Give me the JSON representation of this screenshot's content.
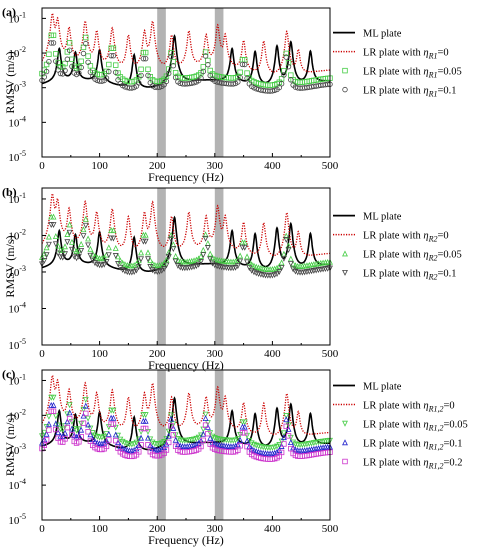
{
  "chart_data": [
    {
      "panel_label": "(a)",
      "type": "line",
      "xlabel": "Frequency (Hz)",
      "ylabel": "RMSV (m/s)",
      "xlim": [
        0,
        500
      ],
      "ylim_log10": [
        -5,
        -0.7
      ],
      "y_scale": "log",
      "x_ticks": [
        "0",
        "100",
        "200",
        "300",
        "400",
        "500"
      ],
      "y_ticks": [
        {
          "base": "10",
          "exp": "-1"
        },
        {
          "base": "10",
          "exp": "-2"
        },
        {
          "base": "10",
          "exp": "-3"
        },
        {
          "base": "10",
          "exp": "-4"
        },
        {
          "base": "10",
          "exp": "-5"
        }
      ],
      "shaded_bands": [
        [
          200,
          215
        ],
        [
          300,
          315
        ]
      ],
      "legend_position": "right",
      "series": [
        {
          "legend": "ML plate",
          "eta_symbol": "",
          "eta_sub": "",
          "eta_value": "",
          "color": "#000000",
          "style": "solid",
          "marker": "none",
          "peaks": [
            30,
            58,
            100,
            160,
            230,
            330,
            370,
            408,
            432,
            466
          ],
          "amps": [
            0.012,
            0.009,
            0.011,
            0.008,
            0.03,
            0.012,
            0.01,
            0.015,
            0.02,
            0.01
          ],
          "base": 0.0012
        },
        {
          "legend": "LR plate with ",
          "eta_symbol": "η",
          "eta_sub": "R1",
          "eta_value": "=0",
          "color": "#cc0000",
          "style": "dotted",
          "marker": "none",
          "peaks": [
            18,
            27,
            47,
            75,
            95,
            122,
            150,
            178,
            192,
            225,
            255,
            285,
            305,
            318,
            350,
            385,
            425,
            445
          ],
          "amps": [
            0.13,
            0.09,
            0.05,
            0.08,
            0.04,
            0.05,
            0.03,
            0.04,
            0.08,
            0.03,
            0.04,
            0.03,
            0.06,
            0.03,
            0.02,
            0.02,
            0.04,
            0.01
          ],
          "base": 0.0025
        },
        {
          "legend": "LR plate with ",
          "eta_symbol": "η",
          "eta_sub": "R1",
          "eta_value": "=0.05",
          "color": "#44cc44",
          "style": "none",
          "marker": "square",
          "peaks": [
            18,
            47,
            75,
            122,
            178,
            225,
            285,
            350,
            425
          ],
          "amps": [
            0.05,
            0.02,
            0.03,
            0.02,
            0.015,
            0.01,
            0.01,
            0.008,
            0.01
          ],
          "base": 0.0015
        },
        {
          "legend": "LR plate with ",
          "eta_symbol": "η",
          "eta_sub": "R1",
          "eta_value": "=0.1",
          "color": "#444444",
          "style": "none",
          "marker": "diamond",
          "peaks": [
            18,
            47,
            75,
            122,
            178,
            225,
            285,
            350,
            425
          ],
          "amps": [
            0.03,
            0.012,
            0.02,
            0.012,
            0.01,
            0.008,
            0.008,
            0.006,
            0.008
          ],
          "base": 0.001
        }
      ]
    },
    {
      "panel_label": "(b)",
      "type": "line",
      "xlabel": "Frequency (Hz)",
      "ylabel": "RMSV (m/s)",
      "xlim": [
        0,
        500
      ],
      "ylim_log10": [
        -5,
        -0.7
      ],
      "y_scale": "log",
      "x_ticks": [
        "0",
        "100",
        "200",
        "300",
        "400",
        "500"
      ],
      "y_ticks": [
        {
          "base": "10",
          "exp": "-1"
        },
        {
          "base": "10",
          "exp": "-2"
        },
        {
          "base": "10",
          "exp": "-3"
        },
        {
          "base": "10",
          "exp": "-4"
        },
        {
          "base": "10",
          "exp": "-5"
        }
      ],
      "shaded_bands": [
        [
          200,
          215
        ],
        [
          300,
          315
        ]
      ],
      "legend_position": "right",
      "series": [
        {
          "legend": "ML plate",
          "eta_symbol": "",
          "eta_sub": "",
          "eta_value": "",
          "color": "#000000",
          "style": "solid",
          "marker": "none",
          "peaks": [
            30,
            58,
            100,
            160,
            230,
            330,
            370,
            408,
            432,
            466
          ],
          "amps": [
            0.012,
            0.009,
            0.011,
            0.008,
            0.03,
            0.012,
            0.01,
            0.015,
            0.02,
            0.01
          ],
          "base": 0.0012
        },
        {
          "legend": "LR plate with ",
          "eta_symbol": "η",
          "eta_sub": "R2",
          "eta_value": "=0",
          "color": "#cc0000",
          "style": "dotted",
          "marker": "none",
          "peaks": [
            18,
            27,
            47,
            75,
            95,
            122,
            150,
            178,
            192,
            225,
            255,
            285,
            305,
            318,
            350,
            385,
            425,
            445
          ],
          "amps": [
            0.13,
            0.09,
            0.05,
            0.08,
            0.04,
            0.05,
            0.03,
            0.04,
            0.08,
            0.03,
            0.04,
            0.03,
            0.06,
            0.03,
            0.02,
            0.02,
            0.04,
            0.01
          ],
          "base": 0.0025
        },
        {
          "legend": "LR plate with ",
          "eta_symbol": "η",
          "eta_sub": "R2",
          "eta_value": "=0.05",
          "color": "#44cc44",
          "style": "none",
          "marker": "triangle-up",
          "peaks": [
            18,
            47,
            75,
            122,
            178,
            225,
            285,
            350,
            425
          ],
          "amps": [
            0.05,
            0.02,
            0.03,
            0.02,
            0.015,
            0.01,
            0.01,
            0.008,
            0.01
          ],
          "base": 0.0015
        },
        {
          "legend": "LR plate with ",
          "eta_symbol": "η",
          "eta_sub": "R2",
          "eta_value": "=0.1",
          "color": "#444444",
          "style": "none",
          "marker": "triangle-down",
          "peaks": [
            18,
            47,
            75,
            122,
            178,
            225,
            285,
            350,
            425
          ],
          "amps": [
            0.03,
            0.012,
            0.02,
            0.012,
            0.01,
            0.008,
            0.008,
            0.006,
            0.008
          ],
          "base": 0.001
        }
      ]
    },
    {
      "panel_label": "(c)",
      "type": "line",
      "xlabel": "Frequency (Hz)",
      "ylabel": "RMSV (m/s)",
      "xlim": [
        0,
        500
      ],
      "ylim_log10": [
        -5,
        -0.7
      ],
      "y_scale": "log",
      "x_ticks": [
        "0",
        "100",
        "200",
        "300",
        "400",
        "500"
      ],
      "y_ticks": [
        {
          "base": "10",
          "exp": "-1"
        },
        {
          "base": "10",
          "exp": "-2"
        },
        {
          "base": "10",
          "exp": "-3"
        },
        {
          "base": "10",
          "exp": "-4"
        },
        {
          "base": "10",
          "exp": "-5"
        }
      ],
      "shaded_bands": [
        [
          200,
          215
        ],
        [
          300,
          315
        ]
      ],
      "legend_position": "right",
      "series": [
        {
          "legend": "ML plate",
          "eta_symbol": "",
          "eta_sub": "",
          "eta_value": "",
          "color": "#000000",
          "style": "solid",
          "marker": "none",
          "peaks": [
            30,
            58,
            100,
            160,
            230,
            330,
            370,
            408,
            432,
            466
          ],
          "amps": [
            0.012,
            0.009,
            0.011,
            0.008,
            0.03,
            0.012,
            0.01,
            0.015,
            0.02,
            0.01
          ],
          "base": 0.0012
        },
        {
          "legend": "LR plate with ",
          "eta_symbol": "η",
          "eta_sub": "R1,2",
          "eta_value": "=0",
          "color": "#cc0000",
          "style": "dotted",
          "marker": "none",
          "peaks": [
            18,
            27,
            47,
            75,
            95,
            122,
            150,
            178,
            192,
            225,
            255,
            285,
            305,
            318,
            350,
            385,
            425,
            445
          ],
          "amps": [
            0.13,
            0.09,
            0.05,
            0.08,
            0.04,
            0.05,
            0.03,
            0.04,
            0.08,
            0.03,
            0.04,
            0.03,
            0.06,
            0.03,
            0.02,
            0.02,
            0.04,
            0.01
          ],
          "base": 0.0025
        },
        {
          "legend": "LR plate with ",
          "eta_symbol": "η",
          "eta_sub": "R1,2",
          "eta_value": "=0.05",
          "color": "#44cc44",
          "style": "none",
          "marker": "triangle-down",
          "peaks": [
            18,
            47,
            75,
            122,
            178,
            225,
            285,
            350,
            425
          ],
          "amps": [
            0.05,
            0.02,
            0.03,
            0.02,
            0.015,
            0.01,
            0.01,
            0.008,
            0.01
          ],
          "base": 0.0015
        },
        {
          "legend": "LR plate with ",
          "eta_symbol": "η",
          "eta_sub": "R1,2",
          "eta_value": "=0.1",
          "color": "#2222cc",
          "style": "none",
          "marker": "triangle-up",
          "peaks": [
            18,
            47,
            75,
            122,
            178,
            225,
            285,
            350,
            425
          ],
          "amps": [
            0.03,
            0.012,
            0.02,
            0.012,
            0.01,
            0.008,
            0.008,
            0.006,
            0.008
          ],
          "base": 0.001
        },
        {
          "legend": "LR plate with ",
          "eta_symbol": "η",
          "eta_sub": "R1,2",
          "eta_value": "=0.2",
          "color": "#cc33cc",
          "style": "none",
          "marker": "square",
          "peaks": [
            18,
            47,
            75,
            122,
            178,
            225,
            285,
            350,
            425
          ],
          "amps": [
            0.02,
            0.008,
            0.012,
            0.008,
            0.006,
            0.005,
            0.005,
            0.004,
            0.005
          ],
          "base": 0.0007
        }
      ]
    }
  ]
}
